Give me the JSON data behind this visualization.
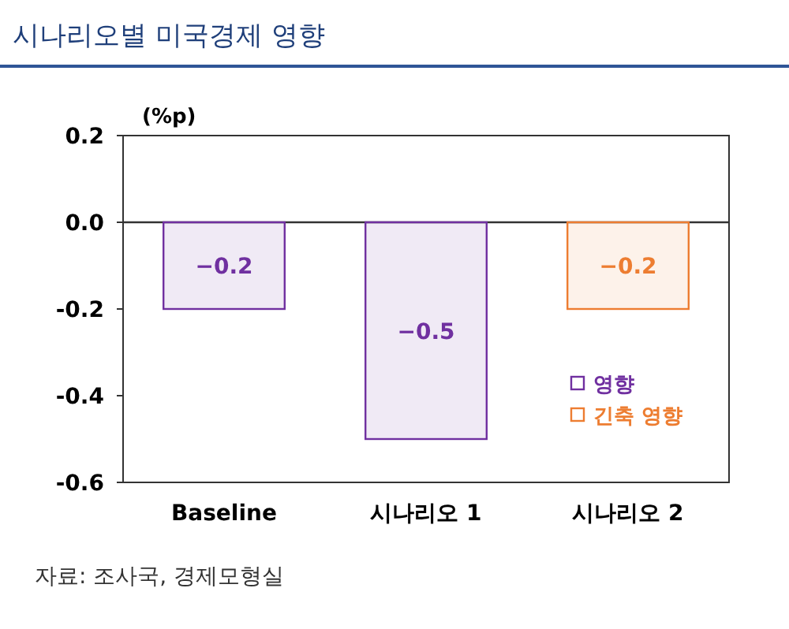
{
  "chart_data": {
    "type": "bar",
    "title": "시나리오별 미국경제 영향",
    "ylabel": "(%p)",
    "categories": [
      "Baseline",
      "시나리오 1",
      "시나리오 2"
    ],
    "series": [
      {
        "name": "영향",
        "color": "#7030a0",
        "values": [
          -0.2,
          -0.5,
          null
        ]
      },
      {
        "name": "긴축 영향",
        "color": "#ed7d31",
        "values": [
          null,
          null,
          -0.2
        ]
      }
    ],
    "ylim": [
      -0.6,
      0.2
    ],
    "yticks": [
      {
        "value": 0.2,
        "label": "0.2"
      },
      {
        "value": 0,
        "label": "0.0"
      },
      {
        "value": -0.2,
        "label": "-0.2"
      },
      {
        "value": -0.4,
        "label": "-0.4"
      },
      {
        "value": -0.6,
        "label": "-0.6"
      }
    ],
    "data_labels": true,
    "legend": "bottom right",
    "annotations": [
      "자료: 조사국, 경제모형실"
    ]
  }
}
